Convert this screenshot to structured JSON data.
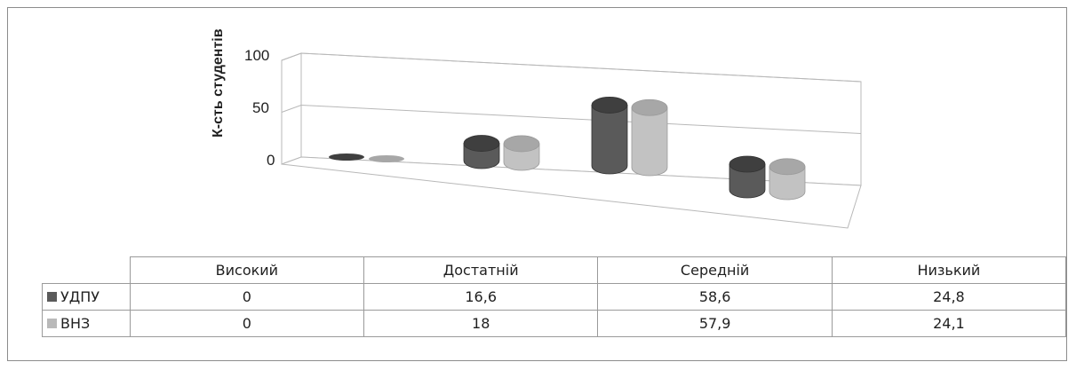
{
  "chart_data": {
    "type": "bar",
    "ylabel": "К-сть студентів",
    "ylim": [
      0,
      100
    ],
    "yticks": [
      "0",
      "50",
      "100"
    ],
    "categories": [
      "Високий",
      "Достатній",
      "Середній",
      "Низький"
    ],
    "series": [
      {
        "name": "УДПУ",
        "color": "#5a5a5a",
        "values": [
          "0",
          "16,6",
          "58,6",
          "24,8"
        ],
        "numeric": [
          0,
          16.6,
          58.6,
          24.8
        ]
      },
      {
        "name": "ВНЗ",
        "color": "#b9b9b9",
        "values": [
          "0",
          "18",
          "57,9",
          "24,1"
        ],
        "numeric": [
          0,
          18,
          57.9,
          24.1
        ]
      }
    ]
  }
}
